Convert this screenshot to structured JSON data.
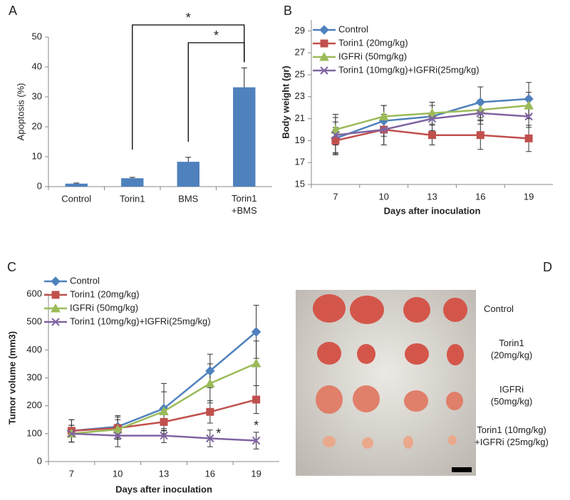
{
  "chart_data": [
    {
      "type": "bar",
      "panel_label": "A",
      "ylabel": "Apoptosis (%)",
      "categories": [
        "Control",
        "Torin1",
        "BMS",
        [
          "Torin1",
          "+BMS"
        ]
      ],
      "values": [
        1,
        2.8,
        8.3,
        33.2
      ],
      "errors": [
        0.2,
        0.3,
        1.5,
        6.5
      ],
      "color": "#4f81bd",
      "ylim": [
        0,
        50
      ],
      "yticks": [
        0,
        10,
        20,
        30,
        40,
        50
      ],
      "significance": [
        {
          "from": 1,
          "to": 3,
          "label": "*"
        },
        {
          "from": 2,
          "to": 3,
          "label": "*"
        }
      ]
    },
    {
      "type": "line",
      "panel_label": "B",
      "ylabel": "Body weight (gr)",
      "xlabel": "Days after inoculation",
      "categories": [
        "7",
        "10",
        "13",
        "16",
        "19"
      ],
      "ylim": [
        15,
        30
      ],
      "yticks": [
        15,
        17,
        19,
        21,
        23,
        25,
        27,
        29
      ],
      "series": [
        {
          "name": "Control",
          "color": "#4f81bd",
          "marker": "diamond",
          "values": [
            19.2,
            20.8,
            21.2,
            22.5,
            22.8
          ],
          "errors": [
            1.5,
            1.4,
            1.3,
            1.4,
            1.5
          ]
        },
        {
          "name": "Torin1 (20mg/kg)",
          "color": "#c0504d",
          "marker": "square",
          "values": [
            19.0,
            20.0,
            19.5,
            19.5,
            19.2
          ],
          "errors": [
            1.2,
            1.4,
            0.9,
            1.3,
            1.2
          ]
        },
        {
          "name": "IGFRi (50mg/kg)",
          "color": "#9bbb59",
          "marker": "triangle",
          "values": [
            20.0,
            21.2,
            21.5,
            21.8,
            22.2
          ],
          "errors": [
            1.4,
            1.0,
            1.0,
            0.9,
            1.2
          ]
        },
        {
          "name": "Torin1 (10mg/kg)+IGFRi(25mg/kg)",
          "color": "#8064a2",
          "marker": "x",
          "values": [
            19.5,
            20.0,
            21.0,
            21.5,
            21.2
          ],
          "errors": [
            1.6,
            1.4,
            1.2,
            1.0,
            1.0
          ]
        }
      ]
    },
    {
      "type": "line",
      "panel_label": "C",
      "ylabel": "Tumor volume (mm3)",
      "xlabel": "Days after inoculation",
      "categories": [
        "7",
        "10",
        "13",
        "16",
        "19"
      ],
      "ylim": [
        0,
        600
      ],
      "yticks": [
        0,
        100,
        200,
        300,
        400,
        500,
        600
      ],
      "series": [
        {
          "name": "Control",
          "color": "#4f81bd",
          "marker": "diamond",
          "values": [
            110,
            125,
            190,
            325,
            465
          ],
          "errors": [
            40,
            40,
            90,
            60,
            95
          ]
        },
        {
          "name": "Torin1 (20mg/kg)",
          "color": "#c0504d",
          "marker": "square",
          "values": [
            110,
            120,
            142,
            178,
            222
          ],
          "errors": [
            40,
            40,
            30,
            40,
            50
          ]
        },
        {
          "name": "IGFRi (50mg/kg)",
          "color": "#9bbb59",
          "marker": "triangle",
          "values": [
            100,
            115,
            180,
            280,
            352
          ],
          "errors": [
            30,
            35,
            70,
            70,
            80
          ]
        },
        {
          "name": "Torin1 (10mg/kg)+IGFRi(25mg/kg)",
          "color": "#8064a2",
          "marker": "x",
          "values": [
            100,
            93,
            93,
            83,
            75
          ],
          "errors": [
            30,
            40,
            25,
            30,
            30
          ]
        }
      ],
      "annotations": [
        {
          "label": "*",
          "at": 3
        },
        {
          "label": "*",
          "at": 4
        }
      ]
    }
  ],
  "photo": {
    "panel_label": "D",
    "labels": [
      [
        "Control"
      ],
      [
        "Torin1",
        "(20mg/kg)"
      ],
      [
        "IGFRi",
        "(50mg/kg)"
      ],
      [
        "Torin1 (10mg/kg)",
        "+IGFRi (25mg/kg)"
      ]
    ]
  }
}
